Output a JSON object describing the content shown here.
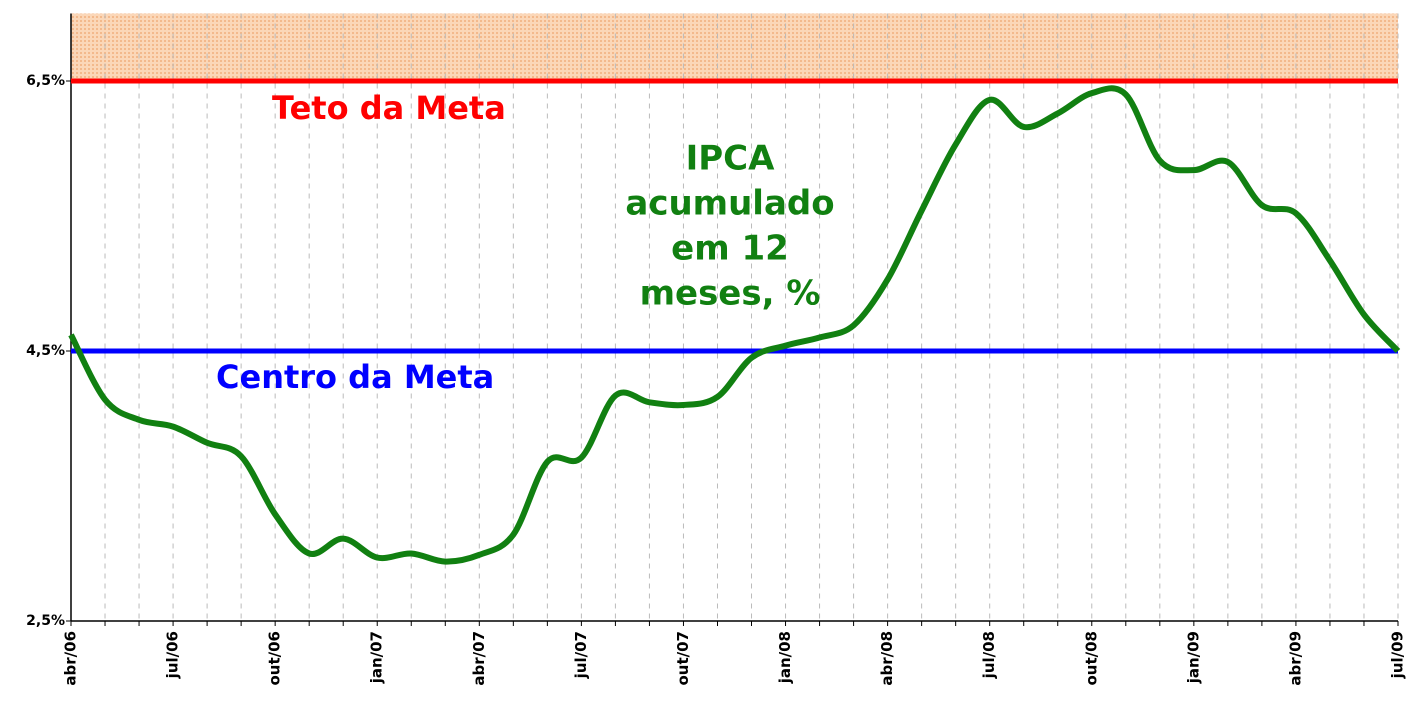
{
  "chart_data": {
    "type": "line",
    "categories": [
      "abr/06",
      null,
      null,
      "jul/06",
      null,
      null,
      "out/06",
      null,
      null,
      "jan/07",
      null,
      null,
      "abr/07",
      null,
      null,
      "jul/07",
      null,
      null,
      "out/07",
      null,
      null,
      "jan/08",
      null,
      null,
      "abr/08",
      null,
      null,
      "jul/08",
      null,
      null,
      "out/08",
      null,
      null,
      "jan/09",
      null,
      null,
      "abr/09",
      null,
      null,
      "jul/09"
    ],
    "series": [
      {
        "name": "IPCA acumulado em 12 meses, %",
        "color": "#118011",
        "values": [
          4.62,
          4.14,
          3.99,
          3.94,
          3.82,
          3.72,
          3.29,
          3.0,
          3.11,
          2.97,
          3.0,
          2.94,
          2.99,
          3.14,
          3.68,
          3.71,
          4.17,
          4.12,
          4.1,
          4.16,
          4.45,
          4.54,
          4.6,
          4.69,
          5.03,
          5.54,
          6.03,
          6.36,
          6.16,
          6.26,
          6.41,
          6.4,
          5.91,
          5.84,
          5.9,
          5.58,
          5.52,
          5.17,
          4.77,
          4.5
        ]
      }
    ],
    "series_label_lines": [
      "IPCA",
      "acumulado",
      "em 12",
      "meses, %"
    ],
    "reference_lines": [
      {
        "label": "Teto da Meta",
        "value": 6.5,
        "color": "#ff0000"
      },
      {
        "label": "Centro da Meta",
        "value": 4.5,
        "color": "#0000ff"
      }
    ],
    "ylim": [
      2.5,
      7.0
    ],
    "yticks": [
      {
        "value": 2.5,
        "label": "2,5%"
      },
      {
        "value": 4.5,
        "label": "4,5%"
      },
      {
        "value": 6.5,
        "label": "6,5%"
      }
    ],
    "grid": true
  }
}
